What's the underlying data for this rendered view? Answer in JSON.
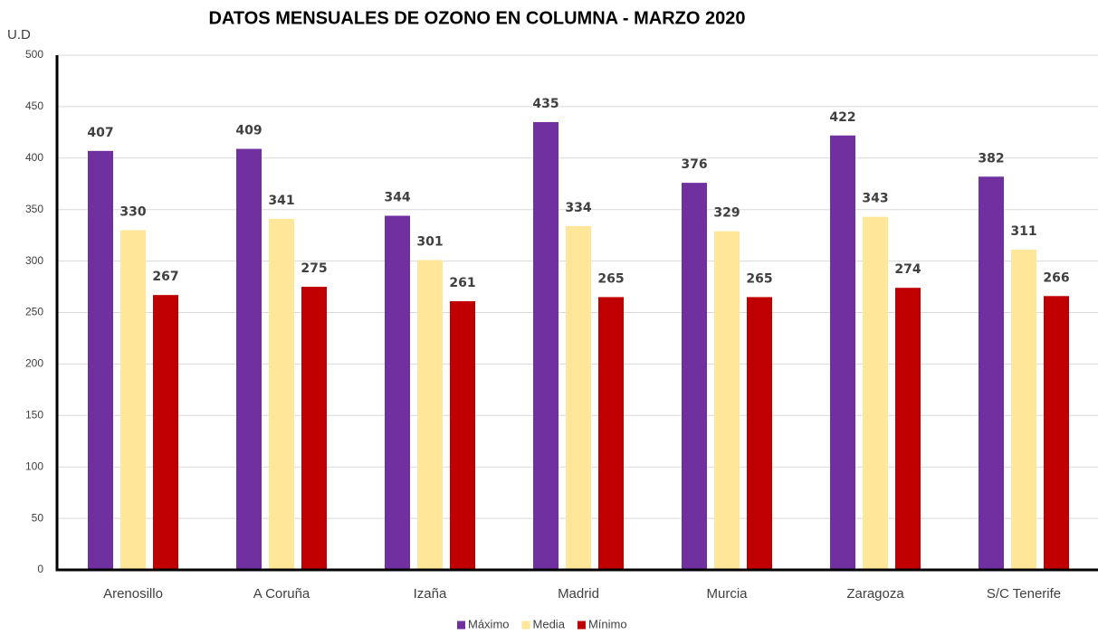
{
  "chart_data": {
    "type": "bar",
    "title": "DATOS MENSUALES DE OZONO EN COLUMNA - MARZO 2020",
    "ylabel": "U.D",
    "categories": [
      "Arenosillo",
      "A Coruña",
      "Izaña",
      "Madrid",
      "Murcia",
      "Zaragoza",
      "S/C Tenerife"
    ],
    "series": [
      {
        "name": "Máximo",
        "color": "#7030a0",
        "values": [
          407,
          409,
          344,
          435,
          376,
          422,
          382
        ]
      },
      {
        "name": "Media",
        "color": "#ffe699",
        "values": [
          330,
          341,
          301,
          334,
          329,
          343,
          311
        ]
      },
      {
        "name": "Mínimo",
        "color": "#c00000",
        "values": [
          267,
          275,
          261,
          265,
          265,
          274,
          266
        ]
      }
    ],
    "ylim": [
      0,
      500
    ],
    "yticks": [
      0,
      50,
      100,
      150,
      200,
      250,
      300,
      350,
      400,
      450,
      500
    ],
    "grid": true,
    "legend": "bottom"
  }
}
